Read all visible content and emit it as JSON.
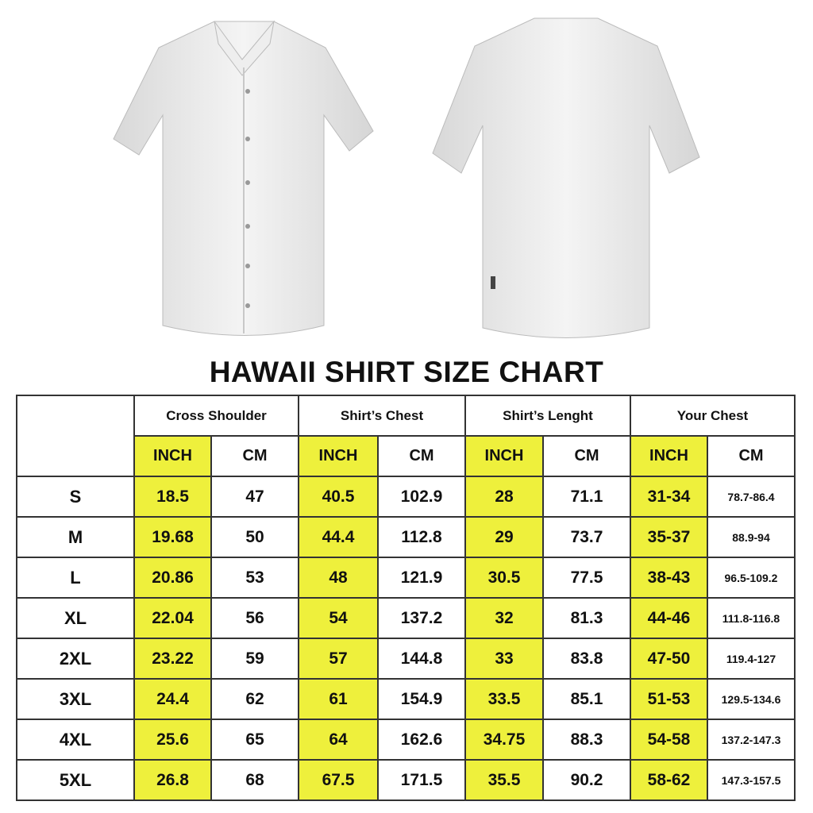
{
  "title": "HAWAII SHIRT SIZE CHART",
  "colors": {
    "inch_highlight": "#eef03c",
    "border": "#333333"
  },
  "images": [
    "shirt-front",
    "shirt-back"
  ],
  "groups": [
    "Cross Shoulder",
    "Shirt’s Chest",
    "Shirt’s Lenght",
    "Your Chest"
  ],
  "units": [
    "INCH",
    "CM"
  ],
  "rows": [
    {
      "size": "S",
      "values": [
        "18.5",
        "47",
        "40.5",
        "102.9",
        "28",
        "71.1",
        "31-34",
        "78.7-86.4"
      ]
    },
    {
      "size": "M",
      "values": [
        "19.68",
        "50",
        "44.4",
        "112.8",
        "29",
        "73.7",
        "35-37",
        "88.9-94"
      ]
    },
    {
      "size": "L",
      "values": [
        "20.86",
        "53",
        "48",
        "121.9",
        "30.5",
        "77.5",
        "38-43",
        "96.5-109.2"
      ]
    },
    {
      "size": "XL",
      "values": [
        "22.04",
        "56",
        "54",
        "137.2",
        "32",
        "81.3",
        "44-46",
        "111.8-116.8"
      ]
    },
    {
      "size": "2XL",
      "values": [
        "23.22",
        "59",
        "57",
        "144.8",
        "33",
        "83.8",
        "47-50",
        "119.4-127"
      ]
    },
    {
      "size": "3XL",
      "values": [
        "24.4",
        "62",
        "61",
        "154.9",
        "33.5",
        "85.1",
        "51-53",
        "129.5-134.6"
      ]
    },
    {
      "size": "4XL",
      "values": [
        "25.6",
        "65",
        "64",
        "162.6",
        "34.75",
        "88.3",
        "54-58",
        "137.2-147.3"
      ]
    },
    {
      "size": "5XL",
      "values": [
        "26.8",
        "68",
        "67.5",
        "171.5",
        "35.5",
        "90.2",
        "58-62",
        "147.3-157.5"
      ]
    }
  ]
}
